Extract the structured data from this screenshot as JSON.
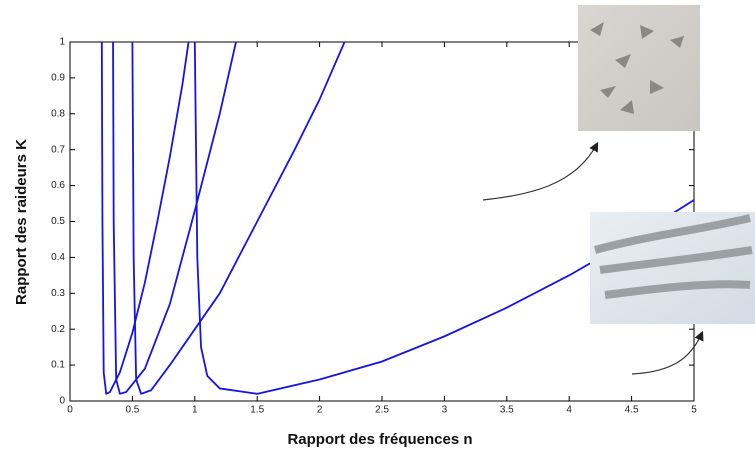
{
  "chart_data": {
    "type": "line",
    "xlabel": "Rapport des fréquences n",
    "ylabel": "Rapport des raideurs K",
    "xlim": [
      0,
      5
    ],
    "ylim": [
      0,
      1
    ],
    "xticks": [
      0,
      0.5,
      1,
      1.5,
      2,
      2.5,
      3,
      3.5,
      4,
      4.5,
      5
    ],
    "yticks": [
      0,
      0.1,
      0.2,
      0.3,
      0.4,
      0.5,
      0.6,
      0.7,
      0.8,
      0.9,
      1
    ],
    "series": [
      {
        "color": "#1414e6",
        "x": [
          0.255,
          0.26,
          0.27,
          0.29,
          0.32,
          0.4,
          0.5,
          0.6,
          0.7,
          0.8,
          0.9,
          0.95
        ],
        "values": [
          1,
          0.5,
          0.08,
          0.02,
          0.025,
          0.08,
          0.19,
          0.33,
          0.5,
          0.68,
          0.88,
          1
        ]
      },
      {
        "color": "#1414e6",
        "x": [
          0.345,
          0.35,
          0.37,
          0.4,
          0.45,
          0.6,
          0.8,
          1.0,
          1.2,
          1.33
        ],
        "values": [
          1,
          0.5,
          0.06,
          0.02,
          0.025,
          0.09,
          0.27,
          0.53,
          0.8,
          1
        ]
      },
      {
        "color": "#1414e6",
        "x": [
          0.5,
          0.51,
          0.53,
          0.57,
          0.65,
          0.8,
          1.0,
          1.2,
          1.5,
          1.8,
          2.0,
          2.2
        ],
        "values": [
          1,
          0.4,
          0.06,
          0.02,
          0.03,
          0.1,
          0.2,
          0.3,
          0.5,
          0.7,
          0.84,
          1
        ]
      },
      {
        "color": "#1414e6",
        "x": [
          1.0,
          1.01,
          1.02,
          1.05,
          1.1,
          1.2,
          1.5,
          2.0,
          2.5,
          3.0,
          3.5,
          4.0,
          4.5,
          5.0
        ],
        "values": [
          1,
          0.7,
          0.4,
          0.15,
          0.07,
          0.035,
          0.02,
          0.06,
          0.11,
          0.18,
          0.26,
          0.35,
          0.45,
          0.56
        ]
      }
    ]
  }
}
